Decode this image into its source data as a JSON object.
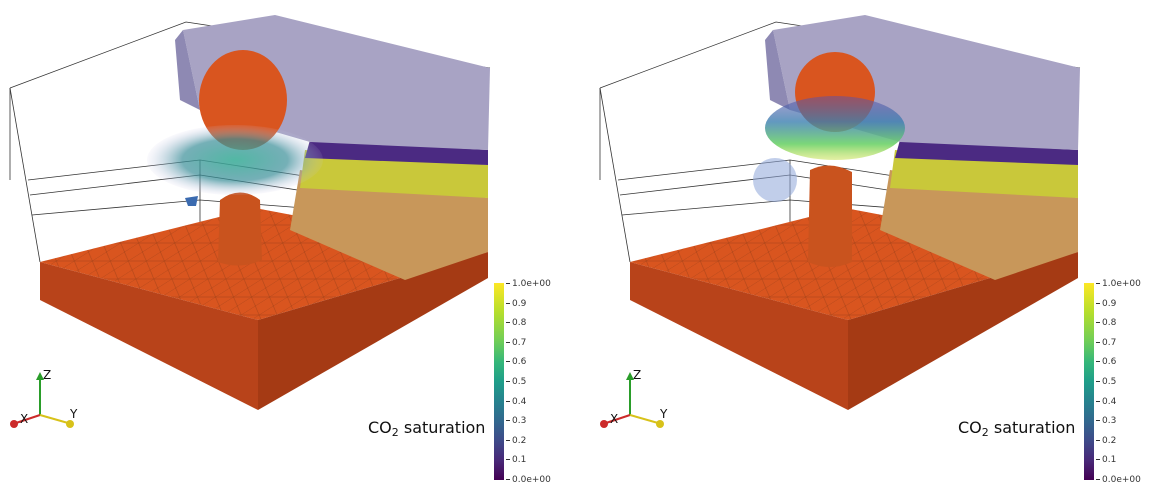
{
  "panels": [
    {
      "colorbar": {
        "title_prefix": "CO",
        "title_sub": "2",
        "title_suffix": " saturation",
        "ticks": [
          "1.0e+00",
          "0.9",
          "0.8",
          "0.7",
          "0.6",
          "0.5",
          "0.4",
          "0.3",
          "0.2",
          "0.1",
          "0.0e+00"
        ]
      },
      "axes": {
        "z": "Z",
        "x": "X",
        "y": "Y"
      }
    },
    {
      "colorbar": {
        "title_prefix": "CO",
        "title_sub": "2",
        "title_suffix": " saturation",
        "ticks": [
          "1.0e+00",
          "0.9",
          "0.8",
          "0.7",
          "0.6",
          "0.5",
          "0.4",
          "0.3",
          "0.2",
          "0.1",
          "0.0e+00"
        ]
      },
      "axes": {
        "z": "Z",
        "x": "X",
        "y": "Y"
      }
    }
  ],
  "colors": {
    "base_orange": "#d9551f",
    "caprock_lilac": "#a8a3c4",
    "purple_layer": "#4b2a82",
    "yellow_layer": "#c9c83a",
    "tan_layer": "#c8975a"
  }
}
